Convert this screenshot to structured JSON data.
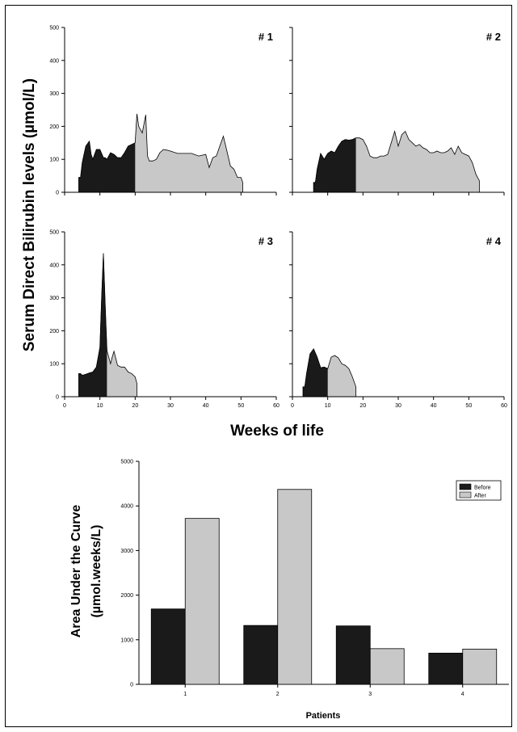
{
  "top_figure": {
    "ylabel": "Serum Direct Bilirubin levels (µmol/L)",
    "xlabel": "Weeks of life"
  },
  "bottom_figure": {
    "ylabel_line1": "Area Under the Curve",
    "ylabel_line2": "(µmol.weeks/L)",
    "xlabel": "Patients"
  },
  "colors": {
    "before": "#1a1a1a",
    "after": "#c8c8c8",
    "axis": "#000000"
  },
  "chart_data": [
    {
      "type": "area",
      "panel_label": "# 1",
      "xlim": [
        0,
        60
      ],
      "ylim": [
        0,
        500
      ],
      "xticks": [
        0,
        10,
        20,
        30,
        40,
        50,
        60
      ],
      "yticks": [
        0,
        100,
        200,
        300,
        400,
        500
      ],
      "show_x_tick_labels": false,
      "show_y_tick_labels": true,
      "split_x": 20,
      "x": [
        4,
        4.5,
        5,
        6,
        7,
        7.5,
        8,
        9,
        10,
        11,
        11.5,
        12,
        13,
        14,
        15,
        16,
        17,
        18,
        19,
        20,
        20.5,
        21,
        22,
        23,
        23.5,
        24,
        25,
        26,
        27,
        28,
        29,
        30,
        32,
        34,
        36,
        38,
        40,
        41,
        42,
        43,
        44,
        45,
        46,
        47,
        48,
        49,
        50,
        50.5
      ],
      "y": [
        45,
        45,
        90,
        140,
        155,
        115,
        100,
        130,
        130,
        105,
        105,
        100,
        120,
        115,
        105,
        105,
        120,
        140,
        145,
        150,
        238,
        200,
        180,
        235,
        110,
        95,
        95,
        100,
        120,
        130,
        128,
        125,
        118,
        118,
        118,
        110,
        115,
        75,
        105,
        110,
        140,
        170,
        125,
        80,
        70,
        45,
        45,
        30
      ]
    },
    {
      "type": "area",
      "panel_label": "# 2",
      "xlim": [
        0,
        60
      ],
      "ylim": [
        0,
        500
      ],
      "xticks": [
        0,
        10,
        20,
        30,
        40,
        50,
        60
      ],
      "yticks": [
        0,
        100,
        200,
        300,
        400,
        500
      ],
      "show_x_tick_labels": false,
      "show_y_tick_labels": false,
      "split_x": 18,
      "x": [
        6,
        6.5,
        7,
        8,
        9,
        10,
        11,
        12,
        13,
        14,
        15,
        16,
        17,
        18,
        19,
        20,
        21,
        22,
        23,
        24,
        25,
        26,
        27,
        28,
        29,
        30,
        31,
        32,
        33,
        34,
        35,
        36,
        37,
        38,
        39,
        40,
        41,
        42,
        43,
        44,
        45,
        46,
        47,
        48,
        49,
        50,
        51,
        52,
        53
      ],
      "y": [
        30,
        30,
        70,
        118,
        100,
        118,
        125,
        120,
        140,
        155,
        160,
        158,
        160,
        165,
        165,
        160,
        140,
        110,
        105,
        105,
        110,
        110,
        115,
        150,
        185,
        140,
        175,
        185,
        160,
        150,
        140,
        145,
        135,
        130,
        120,
        120,
        125,
        120,
        120,
        125,
        135,
        115,
        140,
        120,
        115,
        110,
        90,
        55,
        35
      ]
    },
    {
      "type": "area",
      "panel_label": "# 3",
      "xlim": [
        0,
        60
      ],
      "ylim": [
        0,
        500
      ],
      "xticks": [
        0,
        10,
        20,
        30,
        40,
        50,
        60
      ],
      "yticks": [
        0,
        100,
        200,
        300,
        400,
        500
      ],
      "show_x_tick_labels": true,
      "show_y_tick_labels": true,
      "split_x": 12,
      "x": [
        4,
        4.5,
        5,
        6,
        7,
        8,
        9,
        10,
        10.5,
        11,
        11.5,
        12,
        12.5,
        13,
        13.5,
        14,
        15,
        16,
        17,
        18,
        19,
        20,
        20.5
      ],
      "y": [
        70,
        70,
        65,
        68,
        72,
        75,
        90,
        150,
        300,
        435,
        280,
        140,
        120,
        100,
        120,
        138,
        95,
        90,
        90,
        75,
        70,
        60,
        40
      ]
    },
    {
      "type": "area",
      "panel_label": "# 4",
      "xlim": [
        0,
        60
      ],
      "ylim": [
        0,
        500
      ],
      "xticks": [
        0,
        10,
        20,
        30,
        40,
        50,
        60
      ],
      "yticks": [
        0,
        100,
        200,
        300,
        400,
        500
      ],
      "show_x_tick_labels": true,
      "show_y_tick_labels": false,
      "split_x": 10,
      "x": [
        3,
        3.5,
        4,
        5,
        6,
        7,
        8,
        9,
        10,
        11,
        12,
        13,
        14,
        15,
        16,
        17,
        18
      ],
      "y": [
        30,
        30,
        70,
        130,
        145,
        120,
        88,
        90,
        85,
        120,
        125,
        118,
        100,
        95,
        85,
        60,
        30
      ]
    },
    {
      "type": "bar",
      "categories": [
        "1",
        "2",
        "3",
        "4"
      ],
      "series": [
        {
          "name": "Before",
          "values": [
            1690,
            1320,
            1310,
            700
          ]
        },
        {
          "name": "After",
          "values": [
            3720,
            4370,
            800,
            790
          ]
        }
      ],
      "ylim": [
        0,
        5000
      ],
      "yticks": [
        0,
        1000,
        2000,
        3000,
        4000,
        5000
      ],
      "legend_position": "top-right"
    }
  ]
}
